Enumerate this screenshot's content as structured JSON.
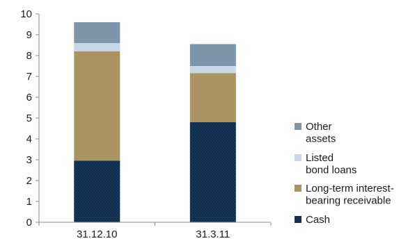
{
  "chart_data": {
    "type": "bar",
    "stacked": true,
    "categories": [
      "31.12.10",
      "31.3.11"
    ],
    "series": [
      {
        "name": "Cash",
        "values": [
          2.95,
          4.8
        ],
        "color": "#0c2d4e"
      },
      {
        "name": "Long-term interest-bearing receivable",
        "values": [
          5.25,
          2.35
        ],
        "color": "#a8915e"
      },
      {
        "name": "Listed bond loans",
        "values": [
          0.4,
          0.35
        ],
        "color": "#c5d6e6"
      },
      {
        "name": "Other assets",
        "values": [
          1.0,
          1.05
        ],
        "color": "#7b93a8"
      }
    ],
    "ylim": [
      0,
      10
    ],
    "yticks": [
      0,
      1,
      2,
      3,
      4,
      5,
      6,
      7,
      8,
      9,
      10
    ],
    "grid": false,
    "legend": {
      "position": "right",
      "entries": [
        {
          "series": "Other assets",
          "lines": [
            "Other",
            "assets"
          ],
          "color": "#7b93a8"
        },
        {
          "series": "Listed bond loans",
          "lines": [
            "Listed",
            "bond loans"
          ],
          "color": "#c5d6e6"
        },
        {
          "series": "Long-term interest-bearing receivable",
          "lines": [
            "Long-term interest-",
            "bearing receivable"
          ],
          "color": "#a8915e"
        },
        {
          "series": "Cash",
          "lines": [
            "Cash"
          ],
          "color": "#0c2d4e"
        }
      ]
    },
    "axis_color": "#8c8c8c",
    "texture_color": "#ffffff"
  }
}
